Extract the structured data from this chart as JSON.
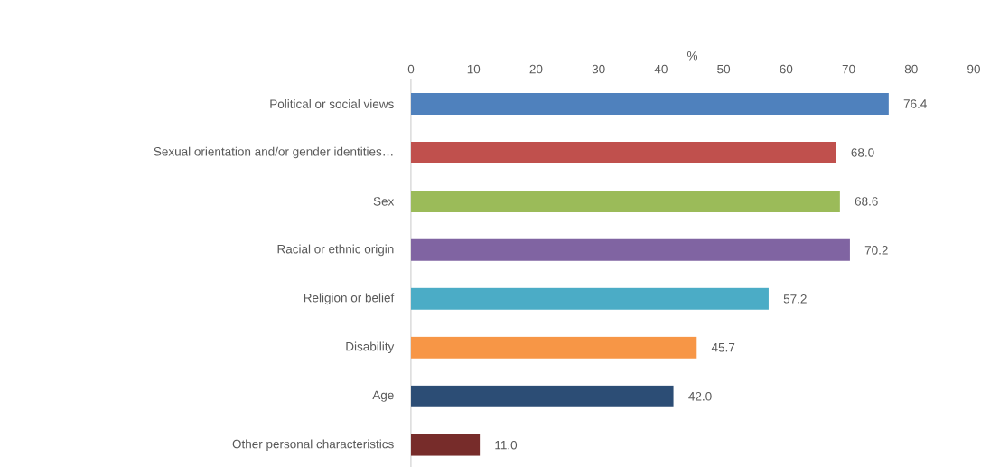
{
  "chart_data": {
    "type": "bar",
    "orientation": "horizontal",
    "xlabel": "%",
    "categories": [
      "Political or social views",
      "Sexual orientation and/or gender identities…",
      "Sex",
      "Racial or ethnic origin",
      "Religion or belief",
      "Disability",
      "Age",
      "Other personal characteristics"
    ],
    "values": [
      76.4,
      68.0,
      68.6,
      70.2,
      57.2,
      45.7,
      42.0,
      11.0
    ],
    "colors": [
      "#4f81bd",
      "#c0504d",
      "#9bbb59",
      "#8064a2",
      "#4bacc6",
      "#f79646",
      "#2c4d75",
      "#772c2a"
    ],
    "value_labels": [
      "76.4",
      "68.0",
      "68.6",
      "70.2",
      "57.2",
      "45.7",
      "42.0",
      "11.0"
    ],
    "xlim": [
      0,
      90
    ],
    "xticks": [
      0,
      10,
      20,
      30,
      40,
      50,
      60,
      70,
      80,
      90
    ],
    "grid": false
  }
}
